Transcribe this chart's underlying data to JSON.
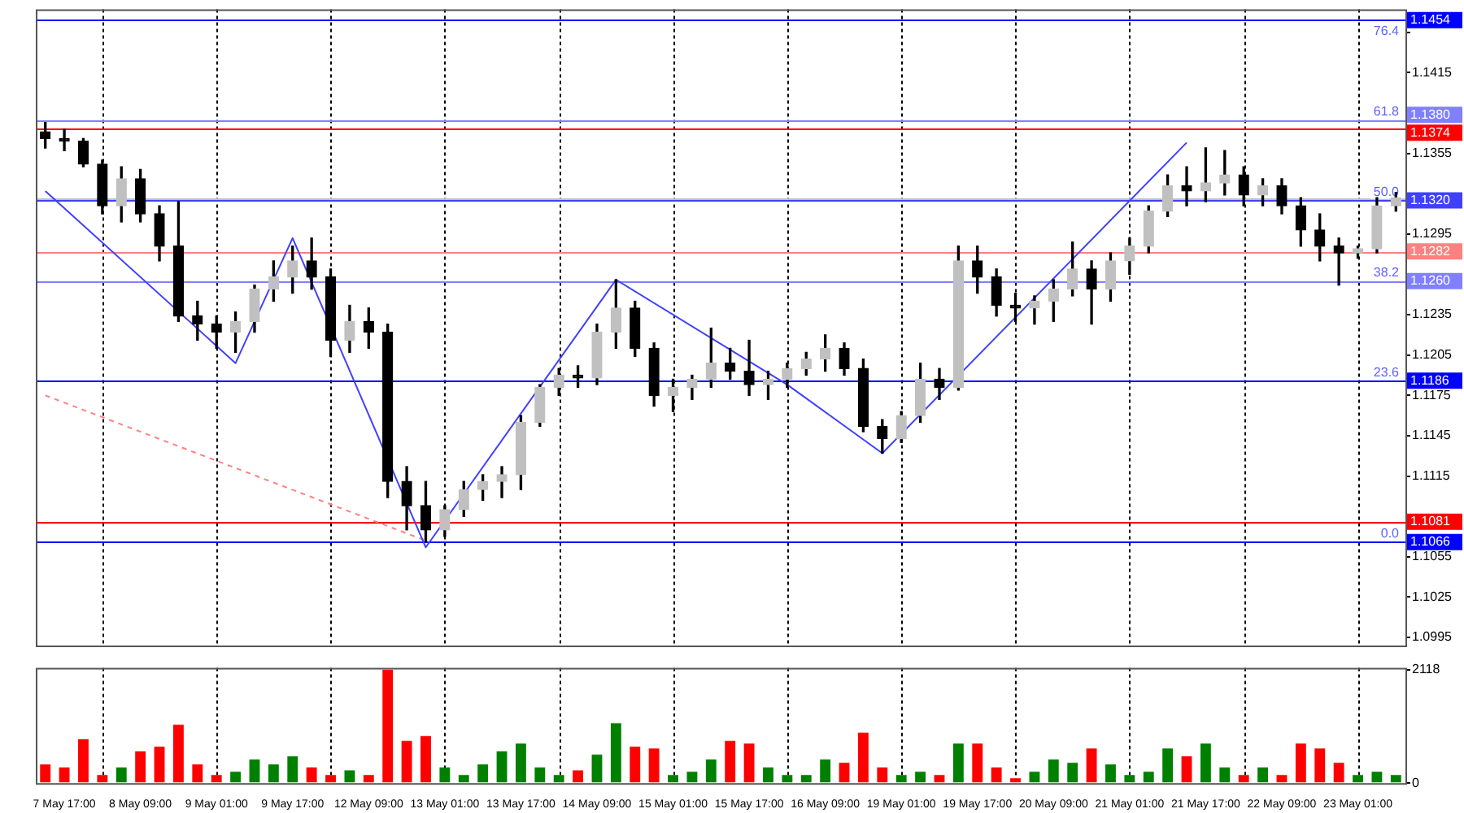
{
  "chart_data": [
    {
      "type": "candlestick",
      "ohlc": [
        [
          1.1371,
          1.1378,
          1.1359,
          1.1366
        ],
        [
          1.1366,
          1.1373,
          1.1357,
          1.1364
        ],
        [
          1.1364,
          1.1366,
          1.1345,
          1.1347
        ],
        [
          1.1347,
          1.135,
          1.131,
          1.1316
        ],
        [
          1.1316,
          1.1345,
          1.1304,
          1.1336
        ],
        [
          1.1336,
          1.1343,
          1.1304,
          1.131
        ],
        [
          1.131,
          1.1316,
          1.1275,
          1.1286
        ],
        [
          1.1286,
          1.1319,
          1.123,
          1.1234
        ],
        [
          1.1234,
          1.1245,
          1.1216,
          1.1228
        ],
        [
          1.1228,
          1.1234,
          1.121,
          1.1222
        ],
        [
          1.1222,
          1.1237,
          1.1207,
          1.123
        ],
        [
          1.123,
          1.1257,
          1.1222,
          1.1254
        ],
        [
          1.1254,
          1.1275,
          1.1245,
          1.1263
        ],
        [
          1.1263,
          1.1286,
          1.1251,
          1.1275
        ],
        [
          1.1275,
          1.1292,
          1.1254,
          1.1263
        ],
        [
          1.1263,
          1.1269,
          1.1204,
          1.1216
        ],
        [
          1.1216,
          1.1242,
          1.1207,
          1.123
        ],
        [
          1.123,
          1.124,
          1.121,
          1.1222
        ],
        [
          1.1222,
          1.1228,
          1.1099,
          1.1111
        ],
        [
          1.1111,
          1.1122,
          1.1075,
          1.1093
        ],
        [
          1.1093,
          1.1111,
          1.1066,
          1.1075
        ],
        [
          1.1075,
          1.1093,
          1.107,
          1.109
        ],
        [
          1.109,
          1.1111,
          1.1085,
          1.1105
        ],
        [
          1.1105,
          1.1116,
          1.1097,
          1.1111
        ],
        [
          1.1111,
          1.1122,
          1.1099,
          1.1116
        ],
        [
          1.1116,
          1.116,
          1.1105,
          1.1155
        ],
        [
          1.1155,
          1.1183,
          1.1152,
          1.1181
        ],
        [
          1.1181,
          1.1195,
          1.1175,
          1.119
        ],
        [
          1.119,
          1.1197,
          1.1181,
          1.1188
        ],
        [
          1.1188,
          1.1228,
          1.1183,
          1.1222
        ],
        [
          1.1222,
          1.1261,
          1.121,
          1.124
        ],
        [
          1.124,
          1.1245,
          1.1204,
          1.121
        ],
        [
          1.121,
          1.1214,
          1.1167,
          1.1175
        ],
        [
          1.1175,
          1.1187,
          1.1163,
          1.1181
        ],
        [
          1.1181,
          1.119,
          1.1172,
          1.1187
        ],
        [
          1.1187,
          1.1225,
          1.1181,
          1.1199
        ],
        [
          1.1199,
          1.121,
          1.1187,
          1.1193
        ],
        [
          1.1193,
          1.1216,
          1.1175,
          1.1183
        ],
        [
          1.1183,
          1.1193,
          1.1172,
          1.1187
        ],
        [
          1.1187,
          1.1199,
          1.1181,
          1.1195
        ],
        [
          1.1195,
          1.1207,
          1.119,
          1.1202
        ],
        [
          1.1202,
          1.122,
          1.1193,
          1.121
        ],
        [
          1.121,
          1.1214,
          1.119,
          1.1195
        ],
        [
          1.1195,
          1.1202,
          1.1148,
          1.1152
        ],
        [
          1.1152,
          1.1157,
          1.1132,
          1.1143
        ],
        [
          1.1143,
          1.1163,
          1.114,
          1.116
        ],
        [
          1.116,
          1.1199,
          1.1155,
          1.1187
        ],
        [
          1.1187,
          1.1195,
          1.1172,
          1.1181
        ],
        [
          1.1181,
          1.1286,
          1.1179,
          1.1275
        ],
        [
          1.1275,
          1.1286,
          1.1251,
          1.1263
        ],
        [
          1.1263,
          1.1269,
          1.1234,
          1.1242
        ],
        [
          1.1242,
          1.1251,
          1.123,
          1.124
        ],
        [
          1.124,
          1.1249,
          1.1228,
          1.1245
        ],
        [
          1.1245,
          1.1261,
          1.123,
          1.1254
        ],
        [
          1.1254,
          1.1289,
          1.1249,
          1.1269
        ],
        [
          1.1269,
          1.1275,
          1.1228,
          1.1254
        ],
        [
          1.1254,
          1.1281,
          1.1245,
          1.1275
        ],
        [
          1.1275,
          1.1292,
          1.1265,
          1.1286
        ],
        [
          1.1286,
          1.1316,
          1.1281,
          1.1312
        ],
        [
          1.1312,
          1.1339,
          1.1308,
          1.1331
        ],
        [
          1.1331,
          1.1345,
          1.1316,
          1.1327
        ],
        [
          1.1327,
          1.1359,
          1.1319,
          1.1333
        ],
        [
          1.1333,
          1.1357,
          1.1324,
          1.1339
        ],
        [
          1.1339,
          1.1345,
          1.1316,
          1.1324
        ],
        [
          1.1324,
          1.1336,
          1.1316,
          1.1331
        ],
        [
          1.1331,
          1.1336,
          1.131,
          1.1316
        ],
        [
          1.1316,
          1.1322,
          1.1286,
          1.1298
        ],
        [
          1.1298,
          1.131,
          1.1275,
          1.1286
        ],
        [
          1.1286,
          1.1292,
          1.1257,
          1.1281
        ],
        [
          1.1281,
          1.1286,
          1.1277,
          1.1284
        ],
        [
          1.1284,
          1.1322,
          1.1281,
          1.1316
        ],
        [
          1.1316,
          1.1326,
          1.1312,
          1.1322
        ]
      ],
      "colors": [
        "#000000",
        "#000000",
        "#000000",
        "#000000",
        "#c0c0c0",
        "#000000",
        "#000000",
        "#000000",
        "#000000",
        "#000000",
        "#c0c0c0",
        "#c0c0c0",
        "#c0c0c0",
        "#c0c0c0",
        "#000000",
        "#000000",
        "#c0c0c0",
        "#000000",
        "#000000",
        "#000000",
        "#000000",
        "#c0c0c0",
        "#c0c0c0",
        "#c0c0c0",
        "#c0c0c0",
        "#c0c0c0",
        "#c0c0c0",
        "#c0c0c0",
        "#000000",
        "#c0c0c0",
        "#c0c0c0",
        "#000000",
        "#000000",
        "#c0c0c0",
        "#c0c0c0",
        "#c0c0c0",
        "#000000",
        "#000000",
        "#c0c0c0",
        "#c0c0c0",
        "#c0c0c0",
        "#c0c0c0",
        "#000000",
        "#000000",
        "#000000",
        "#c0c0c0",
        "#c0c0c0",
        "#000000",
        "#c0c0c0",
        "#000000",
        "#000000",
        "#000000",
        "#c0c0c0",
        "#c0c0c0",
        "#c0c0c0",
        "#000000",
        "#c0c0c0",
        "#c0c0c0",
        "#c0c0c0",
        "#c0c0c0",
        "#000000",
        "#c0c0c0",
        "#c0c0c0",
        "#000000",
        "#c0c0c0",
        "#000000",
        "#000000",
        "#000000",
        "#000000",
        "#c0c0c0",
        "#c0c0c0",
        "#c0c0c0"
      ],
      "series": [
        {
          "type": "line",
          "color": "#4040ff",
          "values": [
            1.1327,
            null,
            null,
            null,
            null,
            null,
            null,
            null,
            null,
            null,
            1.1199,
            null,
            null,
            1.1292,
            null,
            null,
            null,
            null,
            null,
            null,
            1.1062,
            null,
            null,
            null,
            null,
            null,
            null,
            null,
            null,
            null,
            1.1261,
            null,
            null,
            null,
            null,
            null,
            null,
            null,
            null,
            1.1183,
            null,
            null,
            null,
            null,
            1.1132,
            null,
            null,
            null,
            null,
            null,
            null,
            null,
            null,
            null,
            null,
            null,
            null,
            null,
            null,
            null,
            1.1363,
            null,
            null,
            null,
            null,
            null,
            null,
            null,
            null,
            null,
            null,
            null
          ]
        },
        {
          "type": "line",
          "color": "#ff8080",
          "line_style": "dashed",
          "values": [
            1.1175,
            null,
            null,
            null,
            null,
            null,
            null,
            null,
            null,
            null,
            null,
            null,
            null,
            null,
            null,
            null,
            null,
            null,
            null,
            null,
            1.1067,
            null,
            null,
            null,
            null,
            null,
            null,
            null,
            null,
            null,
            null,
            null,
            null,
            null,
            null,
            null,
            null,
            null,
            null,
            null,
            null,
            null,
            null,
            null,
            null,
            null,
            null,
            null,
            null,
            null,
            null,
            null,
            null,
            null,
            null,
            null,
            null,
            null,
            null,
            null,
            null,
            null,
            null,
            null,
            null,
            null,
            null,
            null,
            null,
            null,
            null,
            null
          ]
        }
      ],
      "ref_lines": [
        {
          "axis": "y",
          "value": 1.1322,
          "color": "#c0c0c0"
        },
        {
          "axis": "y",
          "value": 1.1454,
          "label": "1.1454",
          "color": "#0000ff"
        },
        {
          "axis": "y",
          "value": 1.138,
          "label": "1.1380",
          "color": "#8080ff"
        },
        {
          "axis": "y",
          "value": 1.1374,
          "label": "1.1374",
          "color": "#ff0000"
        },
        {
          "axis": "y",
          "value": 1.132,
          "label": "1.1320",
          "color": "#4040ff"
        },
        {
          "axis": "y",
          "value": 1.1282,
          "label": "1.1282",
          "color": "#ff8080"
        },
        {
          "axis": "y",
          "value": 1.126,
          "label": "1.1260",
          "color": "#8080ff"
        },
        {
          "axis": "y",
          "value": 1.1186,
          "label": "1.1186",
          "color": "#0000ff"
        },
        {
          "axis": "y",
          "value": 1.1081,
          "label": "1.1081",
          "color": "#ff0000"
        },
        {
          "axis": "y",
          "value": 1.1066,
          "label": "1.1066",
          "color": "#0000ff"
        }
      ],
      "annotations": [
        {
          "text": "76.4",
          "y": 1.1454
        },
        {
          "text": "61.8",
          "y": 1.138
        },
        {
          "text": "50.0",
          "y": 1.132
        },
        {
          "text": "38.2",
          "y": 1.126
        },
        {
          "text": "23.6",
          "y": 1.1186
        },
        {
          "text": "0.0",
          "y": 1.1066
        }
      ],
      "ylim": [
        1.0989,
        1.1462
      ],
      "yticks": [
        1.0995,
        1.1025,
        1.1055,
        {
          "value": 1.1085,
          "label": null
        },
        1.1115,
        1.1145,
        1.1175,
        1.1205,
        1.1235,
        {
          "value": 1.1265,
          "label": null
        },
        1.1295,
        {
          "value": 1.1325,
          "label": null
        },
        1.1355,
        {
          "value": 1.1385,
          "label": null
        },
        1.1415,
        {
          "value": 1.1445,
          "label": null
        }
      ],
      "grid": "x",
      "tick_labels": "y"
    },
    {
      "type": "bar",
      "categories": [
        null,
        "7 May 17:00",
        null,
        null,
        null,
        "8 May 09:00",
        null,
        null,
        null,
        "9 May 01:00",
        null,
        null,
        null,
        "9 May 17:00",
        null,
        null,
        null,
        "12 May 09:00",
        null,
        null,
        null,
        "13 May 01:00",
        null,
        null,
        null,
        "13 May 17:00",
        null,
        null,
        null,
        "14 May 09:00",
        null,
        null,
        null,
        "15 May 01:00",
        null,
        null,
        null,
        "15 May 17:00",
        null,
        null,
        null,
        "16 May 09:00",
        null,
        null,
        null,
        "19 May 01:00",
        null,
        null,
        null,
        "19 May 17:00",
        null,
        null,
        null,
        "20 May 09:00",
        null,
        null,
        null,
        "21 May 01:00",
        null,
        null,
        null,
        "21 May 17:00",
        null,
        null,
        null,
        "22 May 09:00",
        null,
        null,
        null,
        "23 May 01:00",
        null,
        null
      ],
      "values": [
        350,
        290,
        820,
        150,
        290,
        590,
        680,
        1090,
        350,
        150,
        210,
        440,
        350,
        500,
        290,
        150,
        240,
        150,
        2118,
        790,
        880,
        290,
        150,
        350,
        590,
        740,
        290,
        150,
        240,
        530,
        1120,
        680,
        650,
        150,
        210,
        440,
        790,
        740,
        290,
        150,
        150,
        440,
        380,
        940,
        290,
        150,
        210,
        150,
        740,
        740,
        290,
        90,
        210,
        440,
        380,
        650,
        350,
        150,
        210,
        650,
        500,
        740,
        290,
        150,
        290,
        150,
        740,
        650,
        380,
        150,
        210,
        150
      ],
      "colors": [
        "#ff0000",
        "#ff0000",
        "#ff0000",
        "#ff0000",
        "#008000",
        "#ff0000",
        "#ff0000",
        "#ff0000",
        "#ff0000",
        "#ff0000",
        "#008000",
        "#008000",
        "#008000",
        "#008000",
        "#ff0000",
        "#ff0000",
        "#008000",
        "#ff0000",
        "#ff0000",
        "#ff0000",
        "#ff0000",
        "#008000",
        "#008000",
        "#008000",
        "#008000",
        "#008000",
        "#008000",
        "#008000",
        "#ff0000",
        "#008000",
        "#008000",
        "#ff0000",
        "#ff0000",
        "#008000",
        "#008000",
        "#008000",
        "#ff0000",
        "#ff0000",
        "#008000",
        "#008000",
        "#008000",
        "#008000",
        "#ff0000",
        "#ff0000",
        "#ff0000",
        "#008000",
        "#008000",
        "#ff0000",
        "#008000",
        "#ff0000",
        "#ff0000",
        "#ff0000",
        "#008000",
        "#008000",
        "#008000",
        "#ff0000",
        "#008000",
        "#008000",
        "#008000",
        "#008000",
        "#ff0000",
        "#008000",
        "#008000",
        "#ff0000",
        "#008000",
        "#ff0000",
        "#ff0000",
        "#ff0000",
        "#ff0000",
        "#008000",
        "#008000",
        "#008000"
      ],
      "ylim": [
        0,
        2150
      ],
      "yticks": [
        0,
        2118
      ],
      "grid": "x"
    }
  ]
}
